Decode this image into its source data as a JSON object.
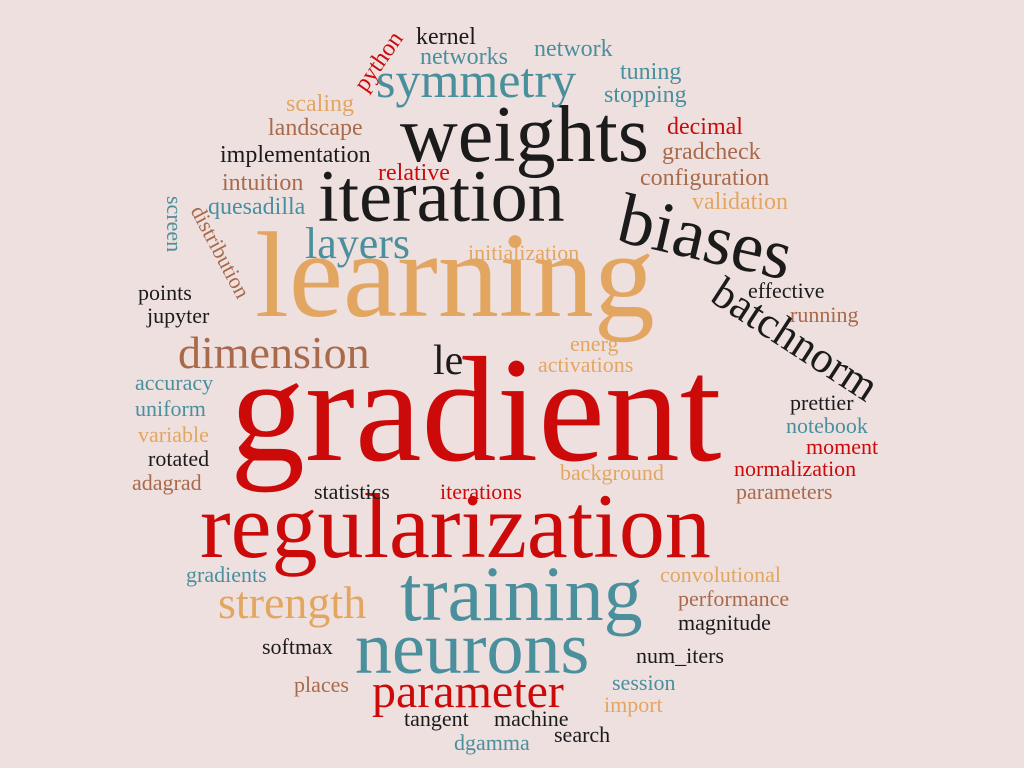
{
  "words": {
    "gradient": "gradient",
    "regularization": "regularization",
    "learning": "learning",
    "weights": "weights",
    "iteration": "iteration",
    "biases": "biases",
    "training": "training",
    "neurons": "neurons",
    "batchnorm": "batchnorm",
    "parameter": "parameter",
    "symmetry": "symmetry",
    "strength": "strength",
    "dimension": "dimension",
    "layers": "layers",
    "le": "le",
    "python": "python",
    "kernel": "kernel",
    "networks": "networks",
    "network": "network",
    "tuning": "tuning",
    "stopping": "stopping",
    "scaling": "scaling",
    "landscape": "landscape",
    "decimal": "decimal",
    "implementation": "implementation",
    "gradcheck": "gradcheck",
    "relative": "relative",
    "intuition": "intuition",
    "configuration": "configuration",
    "quesadilla": "quesadilla",
    "validation": "validation",
    "screen": "screen",
    "distribution": "distribution",
    "initialization": "initialization",
    "points": "points",
    "effective": "effective",
    "jupyter": "jupyter",
    "running": "running",
    "energ": "energ",
    "activations": "activations",
    "accuracy": "accuracy",
    "uniform": "uniform",
    "prettier": "prettier",
    "notebook": "notebook",
    "variable": "variable",
    "moment": "moment",
    "rotated": "rotated",
    "normalization": "normalization",
    "adagrad": "adagrad",
    "background": "background",
    "statistics": "statistics",
    "iterations": "iterations",
    "parameters": "parameters",
    "gradients": "gradients",
    "convolutional": "convolutional",
    "performance": "performance",
    "magnitude": "magnitude",
    "softmax": "softmax",
    "num_iters": "num_iters",
    "places": "places",
    "session": "session",
    "import": "import",
    "tangent": "tangent",
    "machine": "machine",
    "dgamma": "dgamma",
    "search": "search"
  }
}
